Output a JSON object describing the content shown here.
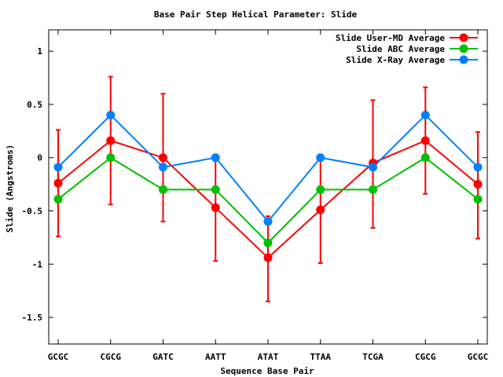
{
  "chart_data": {
    "type": "line",
    "title": "Base Pair Step Helical Parameter: Slide",
    "xlabel": "Sequence Base Pair",
    "ylabel": "Slide (Angstroms)",
    "categories": [
      "GCGC",
      "CGCG",
      "GATC",
      "AATT",
      "ATAT",
      "TTAA",
      "TCGA",
      "CGCG",
      "GCGC"
    ],
    "ylim": [
      -1.75,
      1.2
    ],
    "yticks": [
      1,
      0.5,
      0,
      -0.5,
      -1,
      -1.5
    ],
    "ytick_labels": [
      "1",
      "0.5",
      "0",
      "-0.5",
      "-1",
      "-1.5"
    ],
    "grid": false,
    "legend_position": "top-right",
    "series": [
      {
        "name": "Slide User-MD Average",
        "color": "#ff0000",
        "values": [
          -0.24,
          0.16,
          0.0,
          -0.47,
          -0.94,
          -0.49,
          -0.05,
          0.16,
          -0.25
        ],
        "error_low": [
          -0.74,
          -0.44,
          -0.6,
          -0.97,
          -1.35,
          -0.99,
          -0.66,
          -0.34,
          -0.76
        ],
        "error_high": [
          0.26,
          0.76,
          0.6,
          0.0,
          -0.55,
          0.0,
          0.54,
          0.66,
          0.24
        ]
      },
      {
        "name": "Slide ABC Average",
        "color": "#00c000",
        "values": [
          -0.39,
          0.0,
          -0.3,
          -0.3,
          -0.8,
          -0.3,
          -0.3,
          0.0,
          -0.39
        ]
      },
      {
        "name": "Slide X-Ray Average",
        "color": "#0080ff",
        "values": [
          -0.09,
          0.4,
          -0.09,
          0.0,
          -0.6,
          0.0,
          -0.09,
          0.4,
          -0.09
        ]
      }
    ]
  }
}
